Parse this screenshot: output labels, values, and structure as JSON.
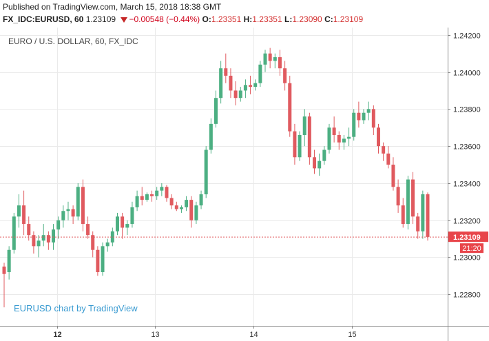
{
  "header": {
    "published_line": "Published on TradingView.com, March 15, 2018 18:38 GMT",
    "symbol": "FX_IDC:EURUSD, 60",
    "last": "1.23109",
    "change": "−0.00548 (−0.44%)",
    "open_label": "O:",
    "open": "1.23351",
    "high_label": "H:",
    "high": "1.23351",
    "low_label": "L:",
    "low": "1.23090",
    "close_label": "C:",
    "close": "1.23109"
  },
  "chart": {
    "watermark": "EURO / U.S. DOLLAR, 60, FX_IDC",
    "credit": "EURUSD chart by TradingView",
    "price_badge": "1.23109",
    "time_badge": "21:20",
    "colors": {
      "up": "#4caf82",
      "down": "#e05a5f",
      "grid": "#eaeaea",
      "badge": "#e8454a"
    }
  },
  "chart_data": {
    "type": "candlestick",
    "title": "EURO / U.S. DOLLAR, 60, FX_IDC",
    "yticks": [
      "1.24200",
      "1.24000",
      "1.23800",
      "1.23600",
      "1.23400",
      "1.23200",
      "1.23000",
      "1.22800"
    ],
    "ylim": [
      1.2263,
      1.2424
    ],
    "xticks": [
      "12",
      "13",
      "14",
      "15"
    ],
    "last_price": 1.23109,
    "candles": [
      [
        1.2295,
        1.2297,
        1.2273,
        1.2291
      ],
      [
        1.2292,
        1.2306,
        1.2288,
        1.2304
      ],
      [
        1.2304,
        1.2324,
        1.2302,
        1.2322
      ],
      [
        1.2322,
        1.2334,
        1.2316,
        1.2328
      ],
      [
        1.2328,
        1.2336,
        1.2312,
        1.2318
      ],
      [
        1.2318,
        1.2322,
        1.2309,
        1.2312
      ],
      [
        1.2312,
        1.2314,
        1.2302,
        1.2306
      ],
      [
        1.2306,
        1.2312,
        1.23,
        1.2309
      ],
      [
        1.2309,
        1.2318,
        1.2306,
        1.2312
      ],
      [
        1.2312,
        1.2314,
        1.2304,
        1.2308
      ],
      [
        1.2308,
        1.2318,
        1.2304,
        1.2315
      ],
      [
        1.2315,
        1.2322,
        1.231,
        1.232
      ],
      [
        1.232,
        1.2328,
        1.2316,
        1.2325
      ],
      [
        1.2325,
        1.233,
        1.232,
        1.2326
      ],
      [
        1.2326,
        1.2328,
        1.2318,
        1.2322
      ],
      [
        1.2322,
        1.234,
        1.232,
        1.2338
      ],
      [
        1.2338,
        1.2342,
        1.2314,
        1.2318
      ],
      [
        1.2318,
        1.2322,
        1.231,
        1.2312
      ],
      [
        1.2312,
        1.2314,
        1.23,
        1.2304
      ],
      [
        1.2304,
        1.2306,
        1.229,
        1.2292
      ],
      [
        1.2292,
        1.2308,
        1.229,
        1.2306
      ],
      [
        1.2306,
        1.231,
        1.2303,
        1.2308
      ],
      [
        1.2308,
        1.2316,
        1.2306,
        1.2314
      ],
      [
        1.2314,
        1.2324,
        1.2312,
        1.2322
      ],
      [
        1.2322,
        1.2324,
        1.231,
        1.2316
      ],
      [
        1.2316,
        1.232,
        1.2312,
        1.2318
      ],
      [
        1.2318,
        1.233,
        1.2316,
        1.2327
      ],
      [
        1.2327,
        1.2336,
        1.2325,
        1.2333
      ],
      [
        1.2333,
        1.2338,
        1.2328,
        1.2331
      ],
      [
        1.2331,
        1.2335,
        1.233,
        1.2334
      ],
      [
        1.2334,
        1.2336,
        1.233,
        1.2333
      ],
      [
        1.2333,
        1.2338,
        1.2331,
        1.2336
      ],
      [
        1.2336,
        1.234,
        1.2333,
        1.2338
      ],
      [
        1.2338,
        1.2339,
        1.233,
        1.2332
      ],
      [
        1.2332,
        1.2334,
        1.2326,
        1.2328
      ],
      [
        1.2328,
        1.233,
        1.2325,
        1.2326
      ],
      [
        1.2326,
        1.2328,
        1.2324,
        1.2327
      ],
      [
        1.2327,
        1.2333,
        1.2325,
        1.2331
      ],
      [
        1.2331,
        1.2333,
        1.2316,
        1.232
      ],
      [
        1.232,
        1.233,
        1.2318,
        1.2328
      ],
      [
        1.2328,
        1.2336,
        1.2326,
        1.2334
      ],
      [
        1.2334,
        1.236,
        1.2332,
        1.2358
      ],
      [
        1.2358,
        1.2375,
        1.2356,
        1.2372
      ],
      [
        1.2372,
        1.239,
        1.237,
        1.2386
      ],
      [
        1.2386,
        1.2406,
        1.2383,
        1.2402
      ],
      [
        1.2402,
        1.241,
        1.2394,
        1.2398
      ],
      [
        1.2398,
        1.2402,
        1.2386,
        1.239
      ],
      [
        1.239,
        1.2395,
        1.2382,
        1.2386
      ],
      [
        1.2386,
        1.2392,
        1.2384,
        1.239
      ],
      [
        1.239,
        1.2396,
        1.2386,
        1.2393
      ],
      [
        1.2393,
        1.2398,
        1.2388,
        1.2392
      ],
      [
        1.2392,
        1.2396,
        1.239,
        1.2394
      ],
      [
        1.2394,
        1.2406,
        1.2392,
        1.2404
      ],
      [
        1.2404,
        1.2412,
        1.24,
        1.241
      ],
      [
        1.241,
        1.2413,
        1.2402,
        1.2406
      ],
      [
        1.2406,
        1.241,
        1.2402,
        1.2408
      ],
      [
        1.2408,
        1.2412,
        1.2398,
        1.2402
      ],
      [
        1.2402,
        1.2406,
        1.239,
        1.2394
      ],
      [
        1.2394,
        1.2398,
        1.2365,
        1.2368
      ],
      [
        1.2368,
        1.2372,
        1.235,
        1.2354
      ],
      [
        1.2354,
        1.2368,
        1.2352,
        1.2366
      ],
      [
        1.2366,
        1.238,
        1.236,
        1.2376
      ],
      [
        1.2376,
        1.2378,
        1.235,
        1.2354
      ],
      [
        1.2354,
        1.2358,
        1.2345,
        1.2348
      ],
      [
        1.2348,
        1.2356,
        1.2344,
        1.2352
      ],
      [
        1.2352,
        1.236,
        1.235,
        1.2358
      ],
      [
        1.2358,
        1.2372,
        1.2356,
        1.237
      ],
      [
        1.237,
        1.2376,
        1.2362,
        1.2366
      ],
      [
        1.2366,
        1.2368,
        1.2358,
        1.2362
      ],
      [
        1.2362,
        1.2366,
        1.2358,
        1.2364
      ],
      [
        1.2364,
        1.237,
        1.236,
        1.2365
      ],
      [
        1.2365,
        1.238,
        1.2363,
        1.2378
      ],
      [
        1.2378,
        1.2384,
        1.237,
        1.2374
      ],
      [
        1.2374,
        1.238,
        1.2372,
        1.2378
      ],
      [
        1.2378,
        1.2384,
        1.2374,
        1.238
      ],
      [
        1.238,
        1.2382,
        1.2366,
        1.237
      ],
      [
        1.237,
        1.2372,
        1.2356,
        1.236
      ],
      [
        1.236,
        1.2362,
        1.2352,
        1.2356
      ],
      [
        1.2356,
        1.236,
        1.2348,
        1.235
      ],
      [
        1.235,
        1.2354,
        1.2336,
        1.2338
      ],
      [
        1.2338,
        1.2342,
        1.2324,
        1.2328
      ],
      [
        1.2328,
        1.2332,
        1.2316,
        1.2318
      ],
      [
        1.2318,
        1.2344,
        1.2315,
        1.2342
      ],
      [
        1.2342,
        1.2346,
        1.2318,
        1.2322
      ],
      [
        1.2322,
        1.2324,
        1.231,
        1.2314
      ],
      [
        1.2314,
        1.2336,
        1.231,
        1.2334
      ],
      [
        1.2334,
        1.2335,
        1.2309,
        1.2311
      ]
    ]
  }
}
